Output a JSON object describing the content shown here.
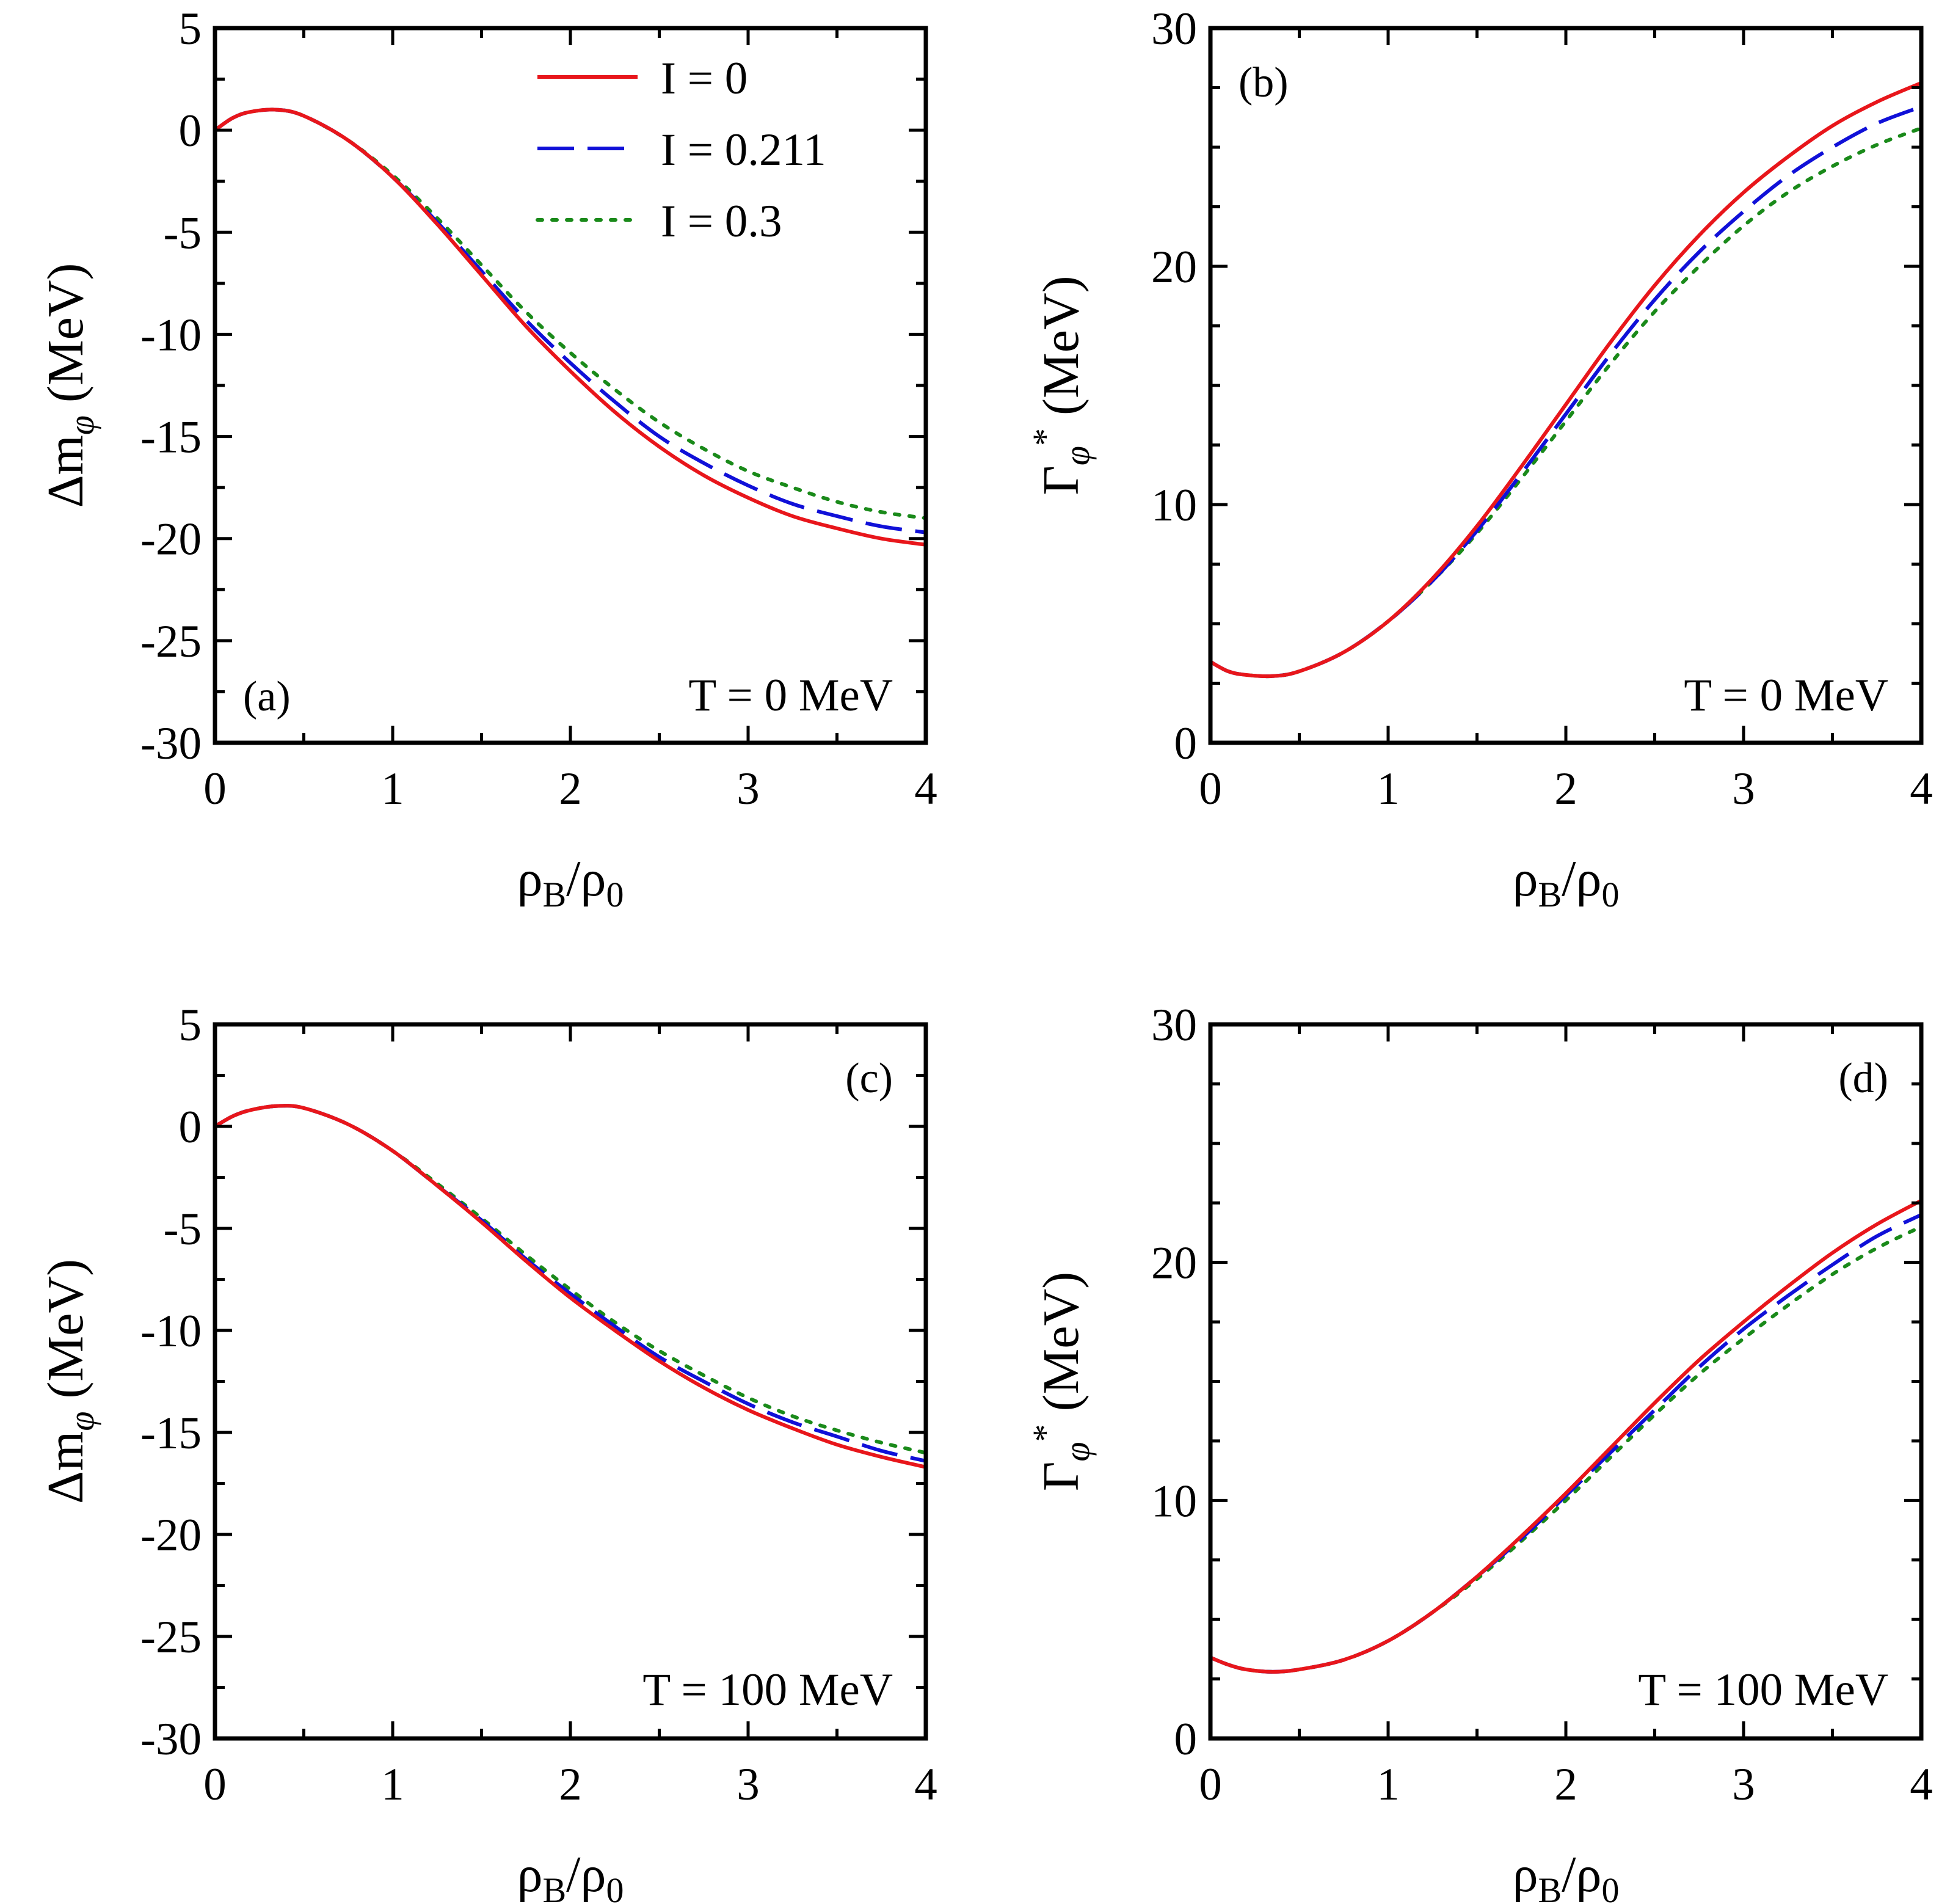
{
  "colors": {
    "I0": "#e8161b",
    "I0211": "#1010d8",
    "I03": "#1a8a1a"
  },
  "legend": {
    "entries": [
      {
        "label": "I =  0",
        "series": "I0",
        "dash": ""
      },
      {
        "label": "I =  0.211",
        "series": "I0211",
        "dash": "60,22"
      },
      {
        "label": "I =  0.3",
        "series": "I03",
        "dash": "8,16"
      }
    ]
  },
  "chart_data": [
    {
      "panel": "(a)",
      "type": "line",
      "temperature": "T = 0 MeV",
      "xlabel": "ρB/ρ0",
      "ylabel": "Δmφ (MeV)",
      "xlim": [
        0,
        4
      ],
      "ylim": [
        -30,
        5
      ],
      "xticks": [
        0,
        1,
        2,
        3,
        4
      ],
      "yticks": [
        -30,
        -25,
        -20,
        -15,
        -10,
        -5,
        0,
        5
      ],
      "x": [
        0,
        0.1,
        0.2,
        0.35,
        0.5,
        0.75,
        1,
        1.25,
        1.5,
        1.75,
        2,
        2.25,
        2.5,
        2.75,
        3,
        3.25,
        3.5,
        3.75,
        4
      ],
      "series": [
        {
          "name": "I =  0",
          "key": "I0",
          "values": [
            0,
            0.6,
            0.9,
            1.0,
            0.7,
            -0.5,
            -2.3,
            -4.6,
            -7.1,
            -9.6,
            -11.8,
            -13.8,
            -15.5,
            -16.9,
            -18.0,
            -18.9,
            -19.5,
            -20.0,
            -20.3
          ]
        },
        {
          "name": "I =  0.211",
          "key": "I0211",
          "values": [
            0,
            0.6,
            0.9,
            1.0,
            0.7,
            -0.5,
            -2.3,
            -4.5,
            -6.9,
            -9.3,
            -11.4,
            -13.3,
            -15.0,
            -16.3,
            -17.4,
            -18.3,
            -18.9,
            -19.4,
            -19.7
          ]
        },
        {
          "name": "I =  0.3",
          "key": "I03",
          "values": [
            0,
            0.6,
            0.9,
            1.0,
            0.7,
            -0.5,
            -2.2,
            -4.3,
            -6.6,
            -8.9,
            -10.9,
            -12.7,
            -14.3,
            -15.6,
            -16.7,
            -17.5,
            -18.2,
            -18.7,
            -19.0
          ]
        }
      ]
    },
    {
      "panel": "(b)",
      "type": "line",
      "temperature": "T = 0 MeV",
      "xlabel": "ρB/ρ0",
      "ylabel": "Γφ* (MeV)",
      "xlim": [
        0,
        4
      ],
      "ylim": [
        0,
        30
      ],
      "xticks": [
        0,
        1,
        2,
        3,
        4
      ],
      "yticks": [
        0,
        10,
        20,
        30
      ],
      "x": [
        0,
        0.1,
        0.2,
        0.35,
        0.5,
        0.75,
        1,
        1.25,
        1.5,
        1.75,
        2,
        2.25,
        2.5,
        2.75,
        3,
        3.25,
        3.5,
        3.75,
        4
      ],
      "series": [
        {
          "name": "I =  0",
          "key": "I0",
          "values": [
            3.4,
            3.0,
            2.85,
            2.8,
            3.0,
            3.8,
            5.1,
            6.9,
            9.1,
            11.6,
            14.2,
            16.8,
            19.2,
            21.3,
            23.1,
            24.6,
            25.9,
            26.9,
            27.7
          ]
        },
        {
          "name": "I =  0.211",
          "key": "I0211",
          "values": [
            3.4,
            3.0,
            2.85,
            2.8,
            3.0,
            3.8,
            5.1,
            6.8,
            8.9,
            11.3,
            13.8,
            16.3,
            18.6,
            20.6,
            22.3,
            23.8,
            25.0,
            26.0,
            26.7
          ]
        },
        {
          "name": "I =  0.3",
          "key": "I03",
          "values": [
            3.4,
            3.0,
            2.85,
            2.8,
            3.0,
            3.8,
            5.1,
            6.8,
            8.8,
            11.1,
            13.5,
            15.9,
            18.1,
            20.0,
            21.7,
            23.1,
            24.2,
            25.1,
            25.8
          ]
        }
      ]
    },
    {
      "panel": "(c)",
      "type": "line",
      "temperature": "T = 100 MeV",
      "xlabel": "ρB/ρ0",
      "ylabel": "Δmφ (MeV)",
      "xlim": [
        0,
        4
      ],
      "ylim": [
        -30,
        5
      ],
      "xticks": [
        0,
        1,
        2,
        3,
        4
      ],
      "yticks": [
        -30,
        -25,
        -20,
        -15,
        -10,
        -5,
        0,
        5
      ],
      "x": [
        0,
        0.1,
        0.2,
        0.35,
        0.5,
        0.75,
        1,
        1.25,
        1.5,
        1.75,
        2,
        2.25,
        2.5,
        2.75,
        3,
        3.25,
        3.5,
        3.75,
        4
      ],
      "series": [
        {
          "name": "I =  0",
          "key": "I0",
          "values": [
            0,
            0.5,
            0.8,
            1.0,
            0.9,
            0.1,
            -1.2,
            -2.9,
            -4.7,
            -6.6,
            -8.4,
            -10.0,
            -11.5,
            -12.8,
            -13.9,
            -14.8,
            -15.6,
            -16.2,
            -16.7
          ]
        },
        {
          "name": "I =  0.211",
          "key": "I0211",
          "values": [
            0,
            0.5,
            0.8,
            1.0,
            0.9,
            0.1,
            -1.2,
            -2.9,
            -4.6,
            -6.5,
            -8.2,
            -9.8,
            -11.3,
            -12.5,
            -13.6,
            -14.5,
            -15.2,
            -15.9,
            -16.4
          ]
        },
        {
          "name": "I =  0.3",
          "key": "I03",
          "values": [
            0,
            0.5,
            0.8,
            1.0,
            0.9,
            0.1,
            -1.2,
            -2.8,
            -4.5,
            -6.3,
            -8.0,
            -9.6,
            -11.0,
            -12.2,
            -13.3,
            -14.2,
            -14.9,
            -15.5,
            -16.0
          ]
        }
      ]
    },
    {
      "panel": "(d)",
      "type": "line",
      "temperature": "T = 100 MeV",
      "xlabel": "ρB/ρ0",
      "ylabel": "Γφ* (MeV)",
      "xlim": [
        0,
        4
      ],
      "ylim": [
        0,
        30
      ],
      "xticks": [
        0,
        1,
        2,
        3,
        4
      ],
      "yticks": [
        0,
        10,
        20,
        30
      ],
      "x": [
        0,
        0.1,
        0.2,
        0.35,
        0.5,
        0.75,
        1,
        1.25,
        1.5,
        1.75,
        2,
        2.25,
        2.5,
        2.75,
        3,
        3.25,
        3.5,
        3.75,
        4
      ],
      "series": [
        {
          "name": "I =  0",
          "key": "I0",
          "values": [
            3.4,
            3.1,
            2.9,
            2.8,
            2.9,
            3.3,
            4.1,
            5.3,
            6.8,
            8.5,
            10.3,
            12.2,
            14.1,
            15.9,
            17.5,
            19.0,
            20.4,
            21.6,
            22.6
          ]
        },
        {
          "name": "I =  0.211",
          "key": "I0211",
          "values": [
            3.4,
            3.1,
            2.9,
            2.8,
            2.9,
            3.3,
            4.1,
            5.3,
            6.8,
            8.4,
            10.2,
            12.0,
            13.8,
            15.6,
            17.2,
            18.6,
            19.9,
            21.1,
            22.0
          ]
        },
        {
          "name": "I =  0.3",
          "key": "I03",
          "values": [
            3.4,
            3.1,
            2.9,
            2.8,
            2.9,
            3.3,
            4.1,
            5.3,
            6.7,
            8.3,
            10.0,
            11.8,
            13.6,
            15.3,
            16.8,
            18.2,
            19.5,
            20.6,
            21.5
          ]
        }
      ]
    }
  ]
}
